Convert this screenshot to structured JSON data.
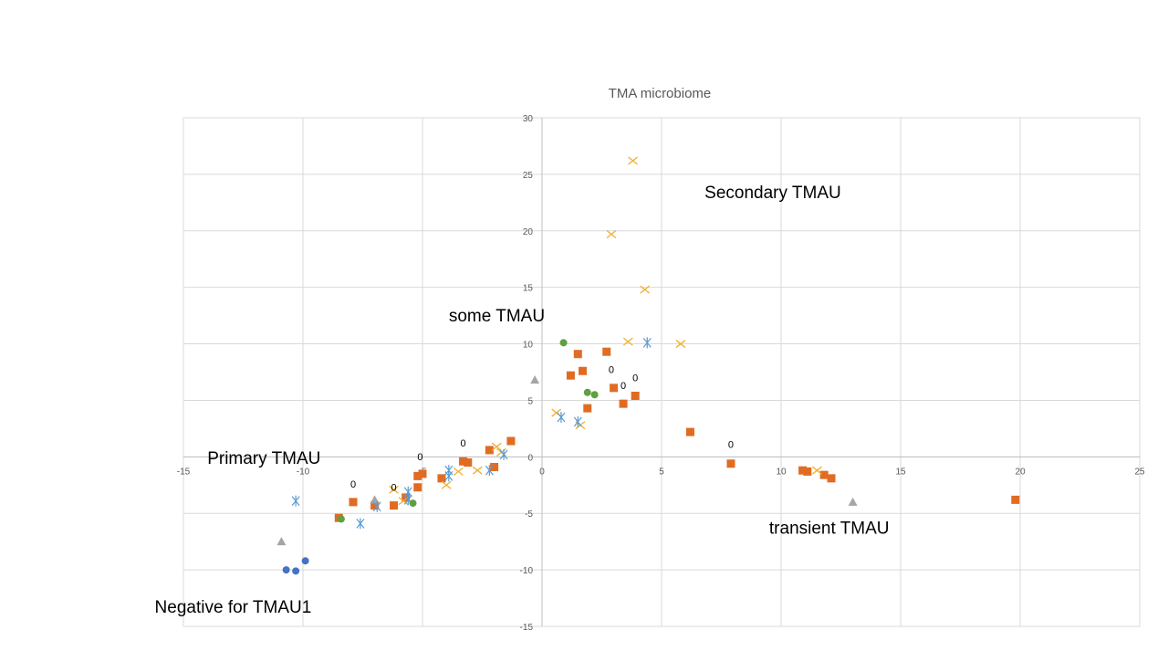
{
  "chart_data": {
    "type": "scatter",
    "title": "TMA microbiome",
    "xlabel": "",
    "ylabel": "",
    "xlim": [
      -15,
      25
    ],
    "ylim": [
      -15,
      30
    ],
    "x_ticks": [
      -15,
      -10,
      -5,
      0,
      5,
      10,
      15,
      20,
      25
    ],
    "y_ticks": [
      -15,
      -10,
      -5,
      0,
      5,
      10,
      15,
      20,
      25,
      30
    ],
    "x_tick_labels": [
      "-15",
      "-10",
      "-5",
      "0",
      "5",
      "10",
      "15",
      "20",
      "25"
    ],
    "y_tick_labels": [
      "-15",
      "-10",
      "-5",
      "0",
      "5",
      "10",
      "15",
      "20",
      "25",
      "30"
    ],
    "grid": true,
    "legend": "none",
    "series": [
      {
        "marker": "circle",
        "color": "#4472C4",
        "points": [
          [
            -10.7,
            -10.0
          ],
          [
            -10.3,
            -10.1
          ],
          [
            -9.9,
            -9.2
          ]
        ]
      },
      {
        "marker": "square",
        "color": "#E06C23",
        "points": [
          [
            -8.5,
            -5.4
          ],
          [
            -7.9,
            -4.0
          ],
          [
            -7.0,
            -4.3
          ],
          [
            -6.2,
            -4.3
          ],
          [
            -5.7,
            -3.6
          ],
          [
            -5.2,
            -2.7
          ],
          [
            -5.2,
            -1.7
          ],
          [
            -5.0,
            -1.5
          ],
          [
            -4.2,
            -1.9
          ],
          [
            -3.3,
            -0.4
          ],
          [
            -3.1,
            -0.5
          ],
          [
            -2.2,
            0.6
          ],
          [
            -2.0,
            -0.9
          ],
          [
            -1.3,
            1.4
          ],
          [
            1.2,
            7.2
          ],
          [
            1.5,
            9.1
          ],
          [
            1.7,
            7.6
          ],
          [
            1.9,
            4.3
          ],
          [
            2.7,
            9.3
          ],
          [
            3.0,
            6.1
          ],
          [
            3.4,
            4.7
          ],
          [
            3.9,
            5.4
          ],
          [
            6.2,
            2.2
          ],
          [
            7.9,
            -0.6
          ],
          [
            10.9,
            -1.2
          ],
          [
            11.1,
            -1.3
          ],
          [
            11.8,
            -1.6
          ],
          [
            12.1,
            -1.9
          ],
          [
            19.8,
            -3.8
          ]
        ]
      },
      {
        "marker": "triangle",
        "color": "#A5A5A5",
        "points": [
          [
            -10.9,
            -7.5
          ],
          [
            -7.0,
            -3.8
          ],
          [
            -0.3,
            6.8
          ],
          [
            13.0,
            -4.0
          ]
        ]
      },
      {
        "marker": "x",
        "color": "#F0B030",
        "points": [
          [
            -6.2,
            -2.9
          ],
          [
            -5.8,
            -3.9
          ],
          [
            -4.0,
            -2.5
          ],
          [
            -3.5,
            -1.3
          ],
          [
            -2.7,
            -1.2
          ],
          [
            -1.9,
            0.9
          ],
          [
            -1.7,
            0.4
          ],
          [
            0.6,
            3.9
          ],
          [
            1.6,
            2.8
          ],
          [
            2.9,
            19.7
          ],
          [
            3.6,
            10.2
          ],
          [
            3.8,
            26.2
          ],
          [
            4.3,
            14.8
          ],
          [
            5.8,
            10.0
          ],
          [
            11.5,
            -1.2
          ]
        ]
      },
      {
        "marker": "asterisk",
        "color": "#5B9BD5",
        "points": [
          [
            -10.3,
            -3.9
          ],
          [
            -7.6,
            -5.9
          ],
          [
            -6.9,
            -4.4
          ],
          [
            -5.6,
            -3.1
          ],
          [
            -5.6,
            -3.8
          ],
          [
            -3.9,
            -1.2
          ],
          [
            -3.9,
            -1.7
          ],
          [
            -2.2,
            -1.2
          ],
          [
            -1.6,
            0.2
          ],
          [
            0.8,
            3.5
          ],
          [
            1.5,
            3.1
          ],
          [
            4.4,
            10.1
          ]
        ]
      },
      {
        "marker": "circle",
        "color": "#5FA040",
        "points": [
          [
            -8.4,
            -5.5
          ],
          [
            -5.4,
            -4.1
          ],
          [
            0.9,
            10.1
          ],
          [
            1.9,
            5.7
          ],
          [
            2.2,
            5.5
          ]
        ]
      }
    ],
    "point_labels": [
      {
        "x": -7.9,
        "y": -2.7,
        "text": "0"
      },
      {
        "x": -6.2,
        "y": -3.0,
        "text": "0"
      },
      {
        "x": -5.1,
        "y": -0.3,
        "text": "0"
      },
      {
        "x": -3.3,
        "y": 0.9,
        "text": "0"
      },
      {
        "x": 2.9,
        "y": 7.4,
        "text": "0"
      },
      {
        "x": 3.4,
        "y": 6.0,
        "text": "0"
      },
      {
        "x": 3.9,
        "y": 6.7,
        "text": "0"
      },
      {
        "x": 7.9,
        "y": 0.8,
        "text": "0"
      }
    ],
    "annotations": [
      {
        "text": "Secondary TMAU",
        "x": 6.8,
        "y": 22.9
      },
      {
        "text": "some TMAU",
        "x": -3.9,
        "y": 12.0
      },
      {
        "text": "Primary TMAU",
        "x": -14.0,
        "y": -0.6
      },
      {
        "text": "transient TMAU",
        "x": 9.5,
        "y": -6.8
      },
      {
        "text": "Negative for TMAU1",
        "x": -16.2,
        "y": -13.8
      }
    ]
  }
}
